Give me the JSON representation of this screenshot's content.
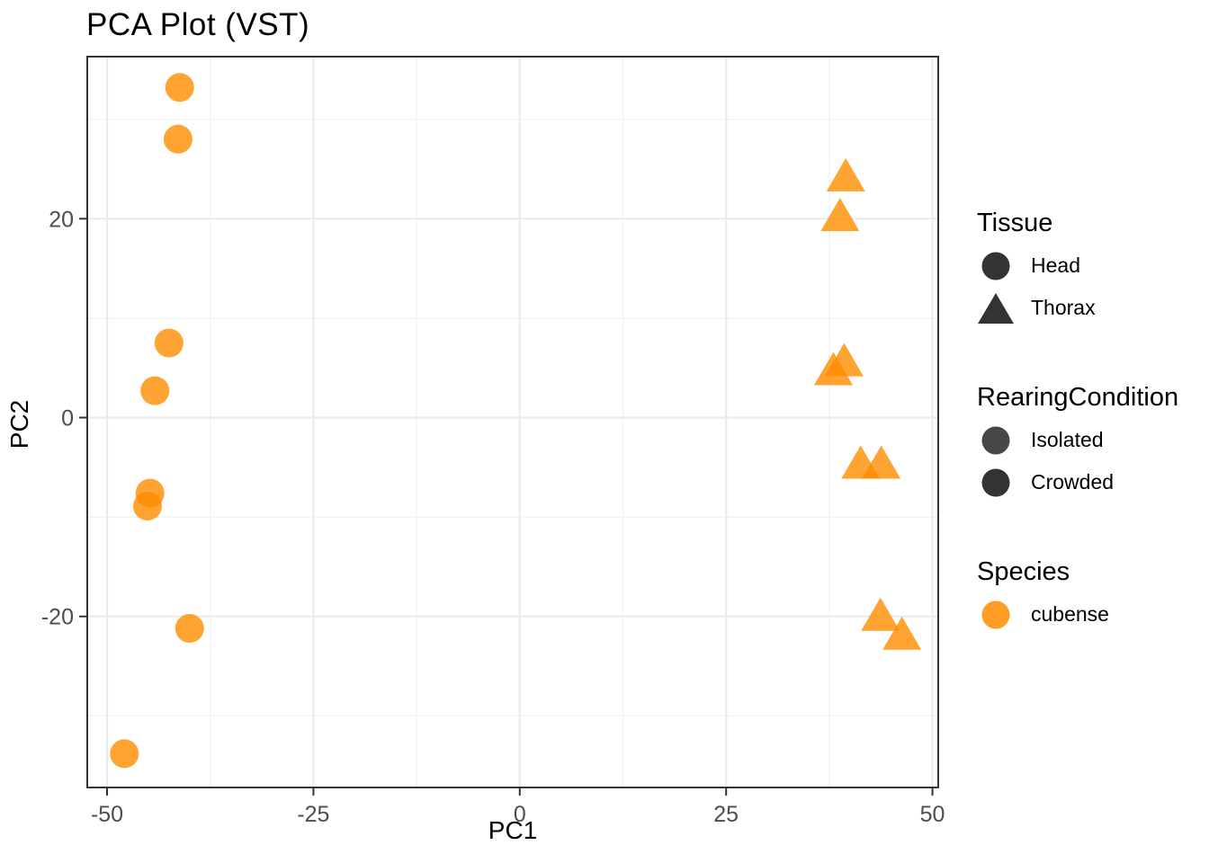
{
  "chart_data": {
    "type": "scatter",
    "title": "PCA Plot (VST)",
    "xlabel": "PC1",
    "ylabel": "PC2",
    "xlim": [
      -52.4,
      50.7
    ],
    "ylim": [
      -37.2,
      36.3
    ],
    "x_major_ticks": [
      -50,
      -25,
      0,
      25,
      50
    ],
    "x_minor_gridlines": [
      -37.5,
      -12.5,
      12.5,
      37.5
    ],
    "y_major_ticks": [
      -20,
      0,
      20
    ],
    "y_minor_gridlines": [
      -30,
      -10,
      10,
      30
    ],
    "grid": true,
    "legend_position": "right",
    "style": {
      "point_color": "#FF8C00",
      "point_opacity": 0.8,
      "legend_glyph_color": "#333333",
      "grid_major_color": "#EBEBEB",
      "grid_minor_color": "#F1F1F1",
      "panel_border_color": "#333333",
      "tick_label_color": "#4D4D4D",
      "background": "#FFFFFF"
    },
    "series": [
      {
        "name": "Head",
        "shape": "circle",
        "points": [
          [
            -41.2,
            33.2
          ],
          [
            -41.4,
            28.0
          ],
          [
            -42.5,
            7.5
          ],
          [
            -44.2,
            2.7
          ],
          [
            -44.8,
            -7.6
          ],
          [
            -45.1,
            -8.9
          ],
          [
            -40.0,
            -21.2
          ],
          [
            -47.9,
            -33.8
          ]
        ]
      },
      {
        "name": "Thorax",
        "shape": "triangle",
        "points": [
          [
            39.5,
            24.2
          ],
          [
            38.8,
            20.2
          ],
          [
            39.3,
            5.6
          ],
          [
            38.0,
            4.7
          ],
          [
            41.3,
            -4.7
          ],
          [
            43.8,
            -4.7
          ],
          [
            43.7,
            -20.0
          ],
          [
            46.3,
            -21.9
          ]
        ]
      }
    ],
    "legend": {
      "groups": [
        {
          "title": "Tissue",
          "items": [
            {
              "label": "Head",
              "shape": "circle",
              "color": "#333333",
              "opacity": 1
            },
            {
              "label": "Thorax",
              "shape": "triangle",
              "color": "#333333",
              "opacity": 1
            }
          ]
        },
        {
          "title": "RearingCondition",
          "items": [
            {
              "label": "Isolated",
              "shape": "circle",
              "color": "#333333",
              "opacity": 0.9
            },
            {
              "label": "Crowded",
              "shape": "circle",
              "color": "#333333",
              "opacity": 1
            }
          ]
        },
        {
          "title": "Species",
          "items": [
            {
              "label": "cubense",
              "shape": "circle",
              "color": "#FF8C00",
              "opacity": 0.85
            }
          ]
        }
      ]
    }
  }
}
